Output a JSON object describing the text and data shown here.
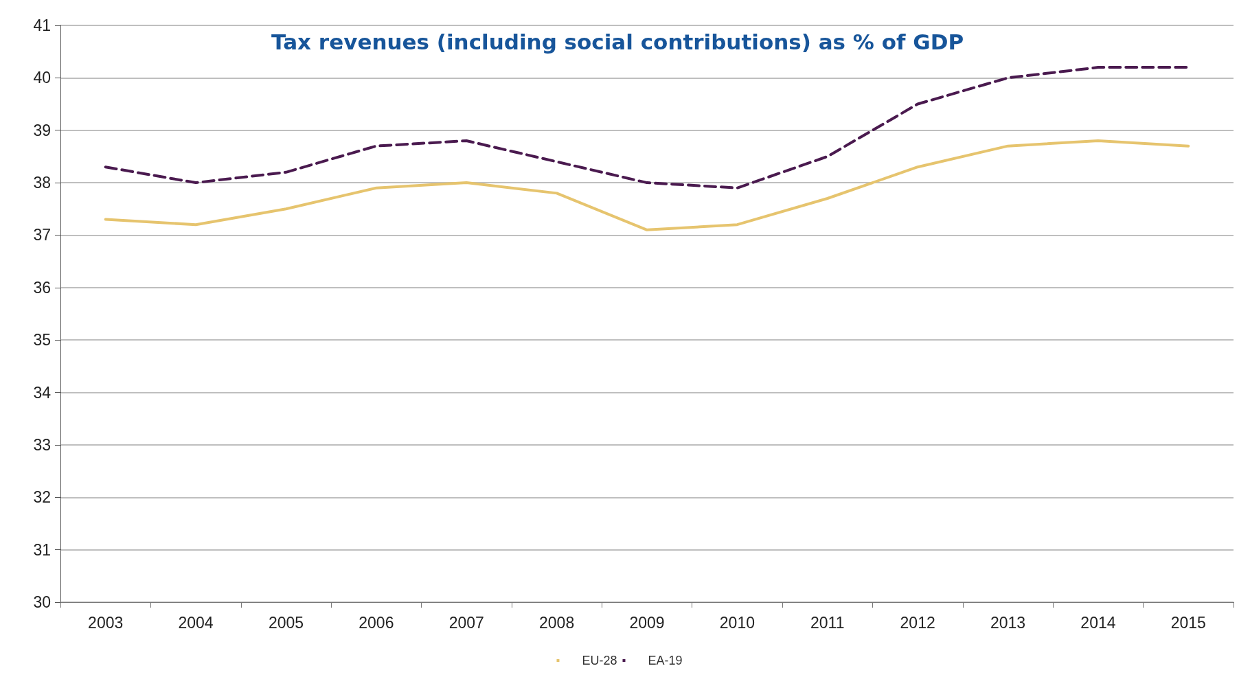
{
  "chart_data": {
    "type": "line",
    "title": "Tax revenues (including social contributions) as % of GDP",
    "categories": [
      "2003",
      "2004",
      "2005",
      "2006",
      "2007",
      "2008",
      "2009",
      "2010",
      "2011",
      "2012",
      "2013",
      "2014",
      "2015"
    ],
    "series": [
      {
        "name": "EU-28",
        "color": "#e6c46e",
        "line_style": "solid",
        "values": [
          37.3,
          37.2,
          37.5,
          37.9,
          38.0,
          37.8,
          37.1,
          37.2,
          37.7,
          38.3,
          38.7,
          38.8,
          38.7
        ]
      },
      {
        "name": "EA-19",
        "color": "#4a1a4f",
        "line_style": "dashed",
        "values": [
          38.3,
          38.0,
          38.2,
          38.7,
          38.8,
          38.4,
          38.0,
          37.9,
          38.5,
          39.5,
          40.0,
          40.2,
          40.2
        ]
      }
    ],
    "ylim": [
      30,
      41
    ],
    "yticks": [
      30,
      31,
      32,
      33,
      34,
      35,
      36,
      37,
      38,
      39,
      40,
      41
    ],
    "grid": "y",
    "legend": "bottom",
    "marker": "none"
  }
}
